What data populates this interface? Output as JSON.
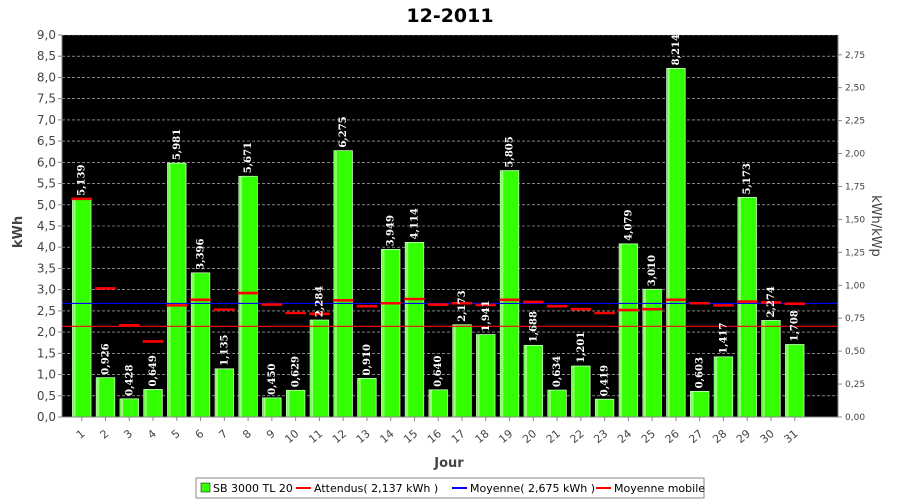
{
  "chart_data": {
    "type": "bar",
    "title": "12-2011",
    "xlabel": "Jour",
    "ylabel": "kWh",
    "y2label": "kWh/kWp",
    "ylim": [
      0,
      9.0
    ],
    "y2lim": [
      0,
      2.9
    ],
    "yticks": [
      "0,0",
      "0,5",
      "1,0",
      "1,5",
      "2,0",
      "2,5",
      "3,0",
      "3,5",
      "4,0",
      "4,5",
      "5,0",
      "5,5",
      "6,0",
      "6,5",
      "7,0",
      "7,5",
      "8,0",
      "8,5",
      "9,0"
    ],
    "y2ticks": [
      "0,00",
      "0,25",
      "0,50",
      "0,75",
      "1,00",
      "1,25",
      "1,50",
      "1,75",
      "2,00",
      "2,25",
      "2,50",
      "2,75"
    ],
    "categories": [
      "1",
      "2",
      "3",
      "4",
      "5",
      "6",
      "7",
      "8",
      "9",
      "10",
      "11",
      "12",
      "13",
      "14",
      "15",
      "16",
      "17",
      "18",
      "19",
      "20",
      "21",
      "22",
      "23",
      "24",
      "25",
      "26",
      "27",
      "28",
      "29",
      "30",
      "31"
    ],
    "grid": true,
    "legend_position": "bottom",
    "series": [
      {
        "name": "SB 3000 TL 20",
        "type": "bar",
        "color": "#33ff00",
        "values": [
          5.139,
          0.926,
          0.428,
          0.649,
          5.981,
          3.396,
          1.135,
          5.671,
          0.45,
          0.629,
          2.284,
          6.275,
          0.91,
          3.949,
          4.114,
          0.64,
          2.173,
          1.941,
          5.805,
          1.688,
          0.634,
          1.201,
          0.419,
          4.079,
          3.01,
          8.214,
          0.603,
          1.417,
          5.173,
          2.274,
          1.708
        ],
        "labels": [
          "5,139",
          "0,926",
          "0,428",
          "0,649",
          "5,981",
          "3,396",
          "1,135",
          "5,671",
          "0,450",
          "0,629",
          "2,284",
          "6,275",
          "0,910",
          "3,949",
          "4,114",
          "0,640",
          "2,173",
          "1,941",
          "5,805",
          "1,688",
          "0,634",
          "1,201",
          "0,419",
          "4,079",
          "3,010",
          "8,214",
          "0,603",
          "1,417",
          "5,173",
          "2,274",
          "1,708"
        ]
      },
      {
        "name": "Attendus( 2,137 kWh )",
        "type": "line",
        "color": "#ff0000",
        "value": 2.137
      },
      {
        "name": "Moyenne( 2,675 kWh )",
        "type": "line",
        "color": "#0000ff",
        "value": 2.675
      },
      {
        "name": "Moyenne mobile",
        "type": "step",
        "color": "#ff0000",
        "values": [
          5.139,
          3.03,
          2.16,
          1.78,
          2.63,
          2.76,
          2.53,
          2.92,
          2.65,
          2.45,
          2.43,
          2.75,
          2.61,
          2.68,
          2.78,
          2.65,
          2.68,
          2.64,
          2.76,
          2.71,
          2.61,
          2.54,
          2.45,
          2.52,
          2.54,
          2.76,
          2.68,
          2.63,
          2.72,
          2.7,
          2.67
        ]
      }
    ]
  }
}
